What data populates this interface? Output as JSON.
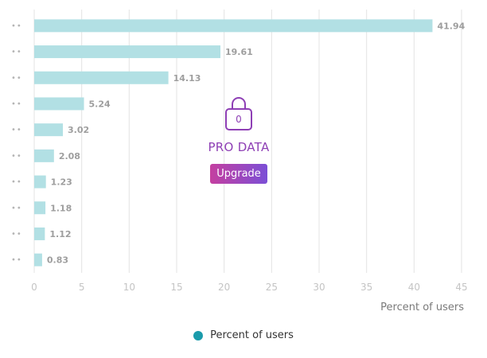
{
  "chart_data": {
    "type": "bar",
    "orientation": "horizontal",
    "categories": [
      "••",
      "••",
      "••",
      "••",
      "••",
      "••",
      "••",
      "••",
      "••",
      "••"
    ],
    "values": [
      41.94,
      19.61,
      14.13,
      5.24,
      3.02,
      2.08,
      1.23,
      1.18,
      1.12,
      0.83
    ],
    "value_labels": [
      "41.94",
      "19.61",
      "14.13",
      "5.24",
      "3.02",
      "2.08",
      "1.23",
      "1.18",
      "1.12",
      "0.83"
    ],
    "xlim": [
      0,
      45
    ],
    "xticks": [
      0,
      5,
      10,
      15,
      20,
      25,
      30,
      35,
      40,
      45
    ],
    "xlabel": "Percent of users",
    "ylabel": "",
    "grid": true,
    "legend": [
      {
        "name": "Percent of users",
        "color": "#1a9bab"
      }
    ],
    "legend_position": "bottom-center",
    "bar_color": "#b2e0e4"
  },
  "overlay": {
    "lock_digit": "0",
    "label": "PRO DATA",
    "button_label": "Upgrade"
  },
  "legend": {
    "label": "Percent of users",
    "color": "#1a9bab"
  }
}
